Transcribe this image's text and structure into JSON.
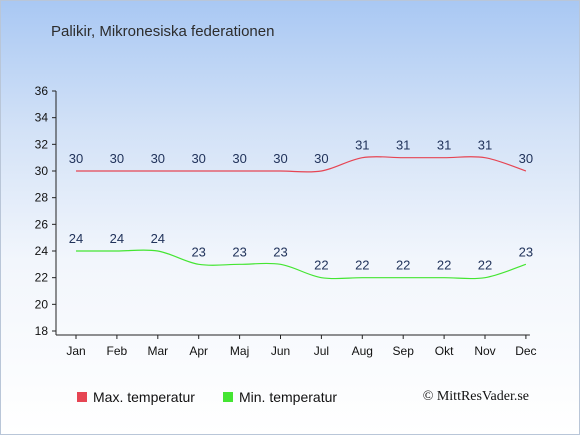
{
  "chart_data": {
    "type": "line",
    "title": "Palikir, Mikronesiska federationen",
    "categories": [
      "Jan",
      "Feb",
      "Mar",
      "Apr",
      "Maj",
      "Jun",
      "Jul",
      "Aug",
      "Sep",
      "Okt",
      "Nov",
      "Dec"
    ],
    "series": [
      {
        "name": "Max. temperatur",
        "color": "#e64553",
        "values": [
          30,
          30,
          30,
          30,
          30,
          30,
          30,
          31,
          31,
          31,
          31,
          30
        ]
      },
      {
        "name": "Min. temperatur",
        "color": "#44e532",
        "values": [
          24,
          24,
          24,
          23,
          23,
          23,
          22,
          22,
          22,
          22,
          22,
          23
        ]
      }
    ],
    "ylim": [
      18,
      36
    ],
    "yticks": [
      18,
      20,
      22,
      24,
      26,
      28,
      30,
      32,
      34,
      36
    ],
    "grid": false,
    "legend_position": "bottom"
  },
  "copyright": "© MittResVader.se"
}
